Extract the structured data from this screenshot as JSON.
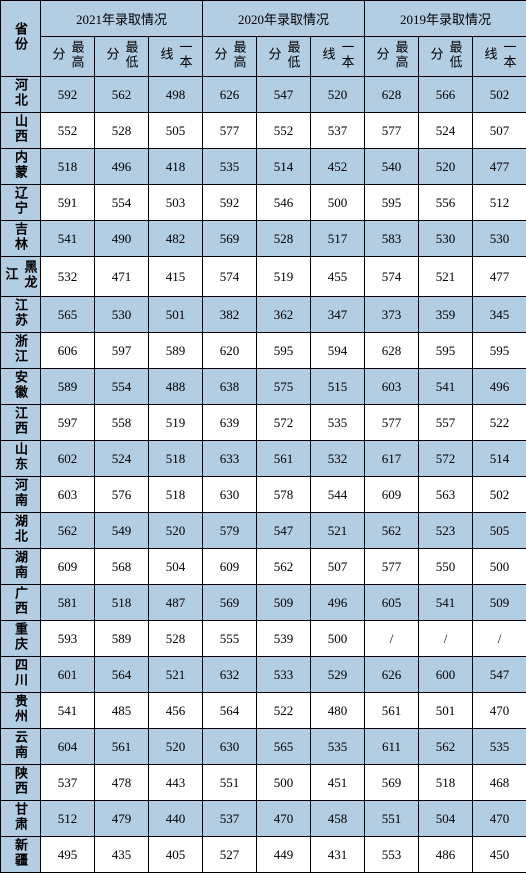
{
  "header": {
    "province_label": "省份",
    "year_groups": [
      "2021年录取情况",
      "2020年录取情况",
      "2019年录取情况"
    ],
    "sub_cols": [
      "最高分",
      "最低分",
      "一本线"
    ]
  },
  "colors": {
    "band": "#b3cde3",
    "white": "#ffffff",
    "border": "#000000"
  },
  "rows": [
    {
      "p": "河北",
      "c": [
        "592",
        "562",
        "498",
        "626",
        "547",
        "520",
        "628",
        "566",
        "502"
      ]
    },
    {
      "p": "山西",
      "c": [
        "552",
        "528",
        "505",
        "577",
        "552",
        "537",
        "577",
        "524",
        "507"
      ]
    },
    {
      "p": "内蒙",
      "c": [
        "518",
        "496",
        "418",
        "535",
        "514",
        "452",
        "540",
        "520",
        "477"
      ]
    },
    {
      "p": "辽宁",
      "c": [
        "591",
        "554",
        "503",
        "592",
        "546",
        "500",
        "595",
        "556",
        "512"
      ]
    },
    {
      "p": "吉林",
      "c": [
        "541",
        "490",
        "482",
        "569",
        "528",
        "517",
        "583",
        "530",
        "530"
      ]
    },
    {
      "p": "黑龙江",
      "c": [
        "532",
        "471",
        "415",
        "574",
        "519",
        "455",
        "574",
        "521",
        "477"
      ]
    },
    {
      "p": "江苏",
      "c": [
        "565",
        "530",
        "501",
        "382",
        "362",
        "347",
        "373",
        "359",
        "345"
      ]
    },
    {
      "p": "浙江",
      "c": [
        "606",
        "597",
        "589",
        "620",
        "595",
        "594",
        "628",
        "595",
        "595"
      ]
    },
    {
      "p": "安徽",
      "c": [
        "589",
        "554",
        "488",
        "638",
        "575",
        "515",
        "603",
        "541",
        "496"
      ]
    },
    {
      "p": "江西",
      "c": [
        "597",
        "558",
        "519",
        "639",
        "572",
        "535",
        "577",
        "557",
        "522"
      ]
    },
    {
      "p": "山东",
      "c": [
        "602",
        "524",
        "518",
        "633",
        "561",
        "532",
        "617",
        "572",
        "514"
      ]
    },
    {
      "p": "河南",
      "c": [
        "603",
        "576",
        "518",
        "630",
        "578",
        "544",
        "609",
        "563",
        "502"
      ]
    },
    {
      "p": "湖北",
      "c": [
        "562",
        "549",
        "520",
        "579",
        "547",
        "521",
        "562",
        "523",
        "505"
      ]
    },
    {
      "p": "湖南",
      "c": [
        "609",
        "568",
        "504",
        "609",
        "562",
        "507",
        "577",
        "550",
        "500"
      ]
    },
    {
      "p": "广西",
      "c": [
        "581",
        "518",
        "487",
        "569",
        "509",
        "496",
        "605",
        "541",
        "509"
      ]
    },
    {
      "p": "重庆",
      "c": [
        "593",
        "589",
        "528",
        "555",
        "539",
        "500",
        "/",
        "/",
        "/"
      ]
    },
    {
      "p": "四川",
      "c": [
        "601",
        "564",
        "521",
        "632",
        "533",
        "529",
        "626",
        "600",
        "547"
      ]
    },
    {
      "p": "贵州",
      "c": [
        "541",
        "485",
        "456",
        "564",
        "522",
        "480",
        "561",
        "501",
        "470"
      ]
    },
    {
      "p": "云南",
      "c": [
        "604",
        "561",
        "520",
        "630",
        "565",
        "535",
        "611",
        "562",
        "535"
      ]
    },
    {
      "p": "陕西",
      "c": [
        "537",
        "478",
        "443",
        "551",
        "500",
        "451",
        "569",
        "518",
        "468"
      ]
    },
    {
      "p": "甘肃",
      "c": [
        "512",
        "479",
        "440",
        "537",
        "470",
        "458",
        "551",
        "504",
        "470"
      ]
    },
    {
      "p": "新疆",
      "c": [
        "495",
        "435",
        "405",
        "527",
        "449",
        "431",
        "553",
        "486",
        "450"
      ]
    }
  ]
}
